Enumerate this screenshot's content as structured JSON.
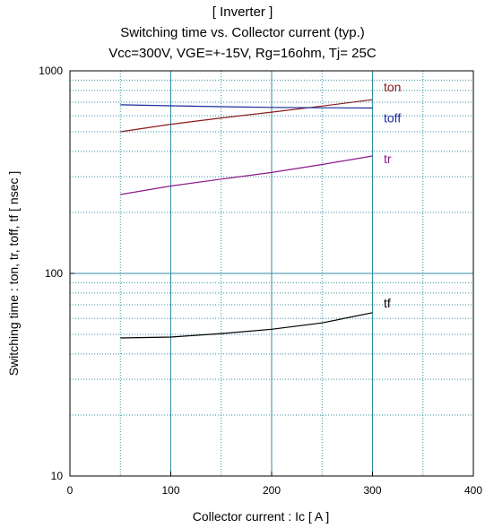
{
  "chart_data": {
    "type": "line",
    "title_lines": [
      "[ Inverter ]",
      "Switching time  vs.  Collector current  (typ.)",
      "Vcc=300V, VGE=+-15V, Rg=16ohm, Tj= 25C"
    ],
    "xlabel": "Collector current  :  Ic  [ A ]",
    "ylabel": "Switching time  :  ton, tr, toff, tf  [ nsec ]",
    "xlim": [
      0,
      400
    ],
    "ylim": [
      10,
      1000
    ],
    "yscale": "log",
    "x_ticks": [
      "0",
      "100",
      "200",
      "300",
      "400"
    ],
    "y_ticks": [
      "10",
      "100",
      "1000"
    ],
    "grid": true,
    "series": [
      {
        "name": "ton",
        "color": "#8b1a1a",
        "x": [
          50,
          100,
          150,
          200,
          250,
          300
        ],
        "y": [
          500,
          545,
          585,
          625,
          670,
          720
        ]
      },
      {
        "name": "toff",
        "color": "#1a2a9a",
        "x": [
          50,
          100,
          150,
          200,
          250,
          300
        ],
        "y": [
          680,
          672,
          665,
          660,
          657,
          655
        ]
      },
      {
        "name": "tr",
        "color": "#8a1a8a",
        "x": [
          50,
          100,
          150,
          200,
          250,
          300
        ],
        "y": [
          245,
          270,
          292,
          315,
          345,
          380
        ]
      },
      {
        "name": "tf",
        "color": "#000000",
        "x": [
          50,
          100,
          150,
          200,
          250,
          300
        ],
        "y": [
          48,
          48.5,
          50.5,
          53,
          57,
          64
        ]
      }
    ]
  }
}
